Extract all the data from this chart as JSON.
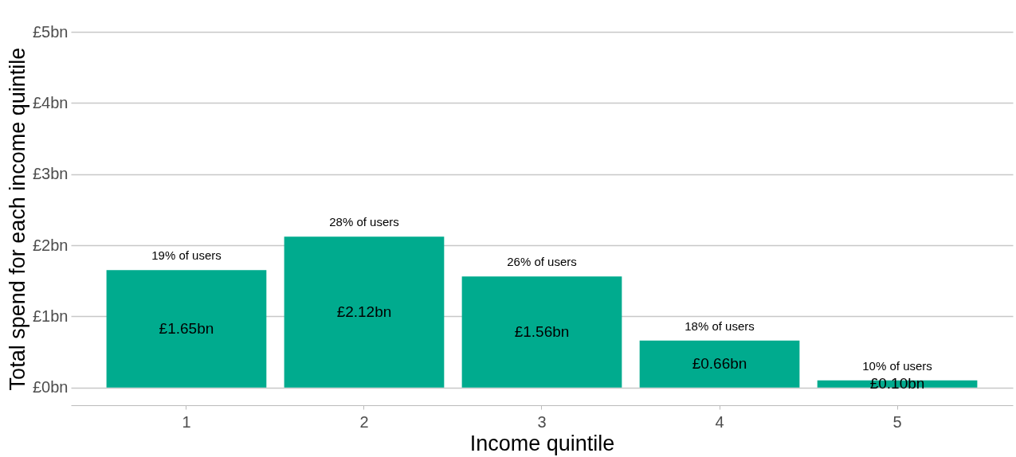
{
  "chart_data": {
    "type": "bar",
    "xlabel": "Income quintile",
    "ylabel": "Total spend for each income quintile",
    "categories": [
      "1",
      "2",
      "3",
      "4",
      "5"
    ],
    "values": [
      1.65,
      2.12,
      1.56,
      0.66,
      0.1
    ],
    "value_labels": [
      "£1.65bn",
      "£2.12bn",
      "£1.56bn",
      "£0.66bn",
      "£0.10bn"
    ],
    "color": "#00ab8e",
    "ylim": [
      -0.25,
      5
    ],
    "yticks": [
      {
        "value": 0,
        "label": "£0bn"
      },
      {
        "value": 1,
        "label": "£1bn"
      },
      {
        "value": 2,
        "label": "£2bn"
      },
      {
        "value": 3,
        "label": "£3bn"
      },
      {
        "value": 4,
        "label": "£4bn"
      },
      {
        "value": 5,
        "label": "£5bn"
      }
    ],
    "grid": "y",
    "annotations": [
      {
        "text": "19% of users",
        "x": "1",
        "y": 1.65
      },
      {
        "text": "28% of users",
        "x": "2",
        "y": 2.12
      },
      {
        "text": "26% of users",
        "x": "3",
        "y": 1.56
      },
      {
        "text": "18% of users",
        "x": "4",
        "y": 0.66
      },
      {
        "text": "10% of users",
        "x": "5",
        "y": 0.1
      }
    ]
  }
}
